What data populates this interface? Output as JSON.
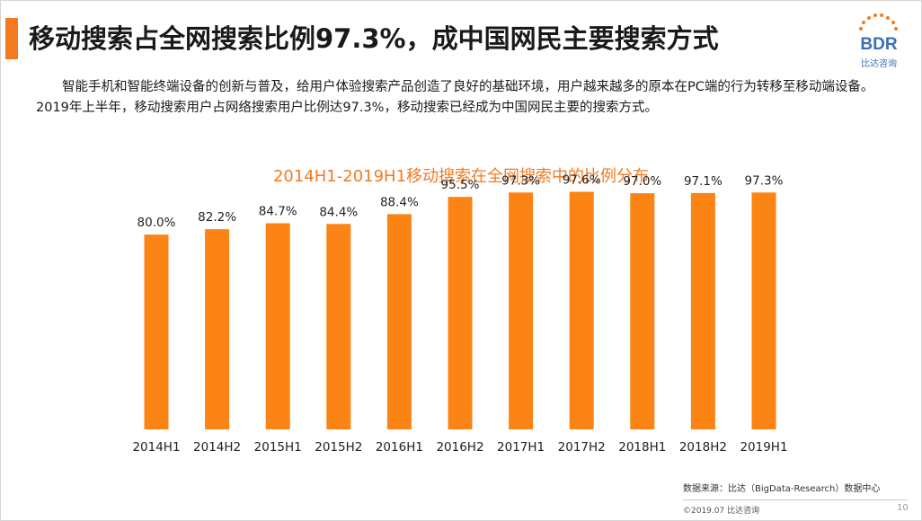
{
  "page": {
    "title": "移动搜索占全网搜索比例97.3%，成中国网民主要搜索方式",
    "intro": "智能手机和智能终端设备的创新与普及，给用户体验搜索产品创造了良好的基础环境，用户越来越多的原本在PC端的行为转移至移动端设备。2019年上半年，移动搜索用户占网络搜索用户比例达97.3%，移动搜索已经成为中国网民主要的搜索方式。",
    "logo_text": "BDR",
    "logo_caption": "比达咨询",
    "source": "数据来源：比达（BigData-Research）数据中心",
    "copyright": "©2019.07 比达咨询",
    "page_number": "10"
  },
  "colors": {
    "accent": "#f47a20",
    "bar": "#fb8414",
    "logo_blue": "#3b6fb6"
  },
  "chart_data": {
    "type": "bar",
    "title": "2014H1-2019H1移动搜索在全网搜索中的比例分布",
    "xlabel": "",
    "ylabel": "",
    "categories": [
      "2014H1",
      "2014H2",
      "2015H1",
      "2015H2",
      "2016H1",
      "2016H2",
      "2017H1",
      "2017H2",
      "2018H1",
      "2018H2",
      "2019H1"
    ],
    "values": [
      80.0,
      82.2,
      84.7,
      84.4,
      88.4,
      95.5,
      97.3,
      97.6,
      97.0,
      97.1,
      97.3
    ],
    "value_labels": [
      "80.0%",
      "82.2%",
      "84.7%",
      "84.4%",
      "88.4%",
      "95.5%",
      "97.3%",
      "97.6%",
      "97.0%",
      "97.1%",
      "97.3%"
    ],
    "unit": "%",
    "grid": false,
    "legend": "none"
  }
}
